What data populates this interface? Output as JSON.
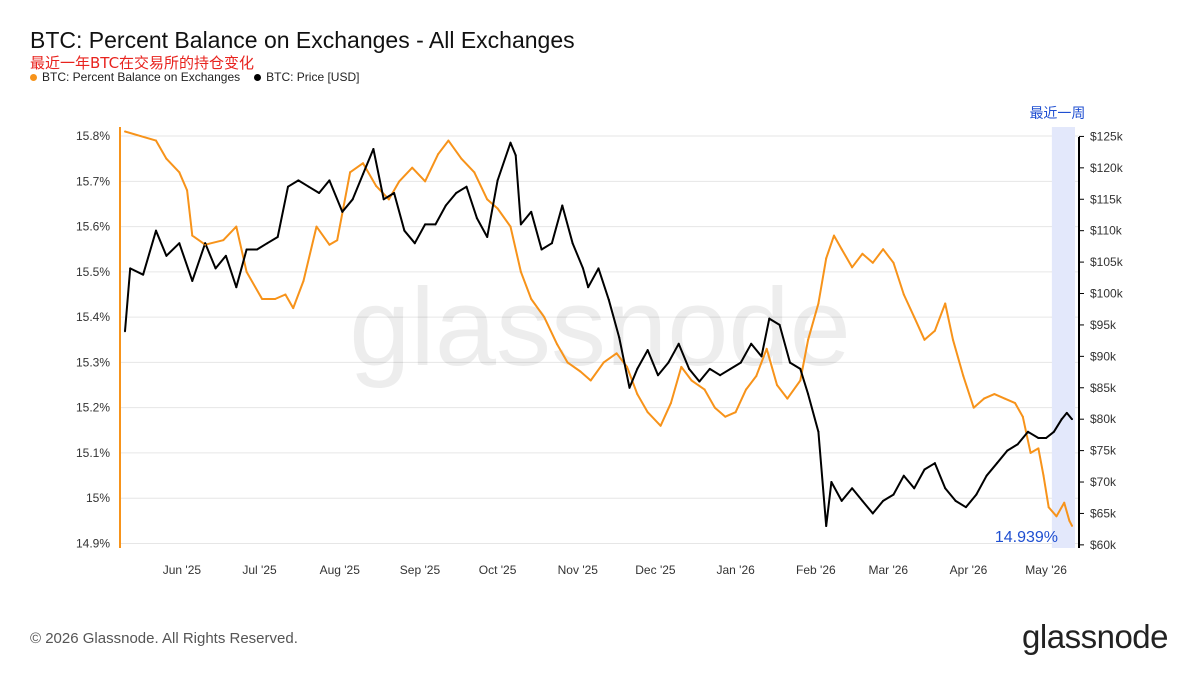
{
  "title": "BTC: Percent Balance on Exchanges - All Exchanges",
  "subtitle": "最近一年BTC在交易所的持仓变化",
  "legend": [
    {
      "label": "BTC: Percent Balance on Exchanges",
      "color": "#f7931a"
    },
    {
      "label": "BTC: Price [USD]",
      "color": "#000000"
    }
  ],
  "annotations": {
    "highlight_label": "最近一周",
    "last_value_label": "14.939%"
  },
  "watermark": "glassnode",
  "footer": {
    "copyright": "© 2026 Glassnode. All Rights Reserved.",
    "brand": "glassnode"
  },
  "colors": {
    "balance": "#f7931a",
    "price": "#000000",
    "highlight": "#e3e8fb",
    "annotation": "#1f4fd1",
    "grid": "#e6e6e6"
  },
  "chart_data": {
    "type": "line",
    "title": "BTC: Percent Balance on Exchanges - All Exchanges",
    "x_ticks": [
      "Jun '25",
      "Jul '25",
      "Aug '25",
      "Sep '25",
      "Oct '25",
      "Nov '25",
      "Dec '25",
      "Jan '26",
      "Feb '26",
      "Mar '26",
      "Apr '26",
      "May '26"
    ],
    "x_range": [
      "2025-05-10",
      "2026-05-11"
    ],
    "y_left": {
      "label": "BTC: Percent Balance on Exchanges",
      "ticks": [
        "14.9%",
        "15%",
        "15.1%",
        "15.2%",
        "15.3%",
        "15.4%",
        "15.5%",
        "15.6%",
        "15.7%",
        "15.8%"
      ],
      "range": [
        14.89,
        15.82
      ]
    },
    "y_right": {
      "label": "BTC: Price [USD]",
      "ticks": [
        "$60k",
        "$65k",
        "$70k",
        "$75k",
        "$80k",
        "$85k",
        "$90k",
        "$95k",
        "$100k",
        "$105k",
        "$110k",
        "$115k",
        "$120k",
        "$125k"
      ],
      "range": [
        59.5,
        126.5
      ]
    },
    "highlight_range": [
      "2026-05-04",
      "2026-05-11"
    ],
    "series": [
      {
        "name": "BTC: Percent Balance on Exchanges",
        "axis": "left",
        "points": [
          [
            "2025-05-10",
            15.81
          ],
          [
            "2025-05-16",
            15.8
          ],
          [
            "2025-05-22",
            15.79
          ],
          [
            "2025-05-26",
            15.75
          ],
          [
            "2025-05-31",
            15.72
          ],
          [
            "2025-06-03",
            15.68
          ],
          [
            "2025-06-05",
            15.58
          ],
          [
            "2025-06-10",
            15.56
          ],
          [
            "2025-06-17",
            15.57
          ],
          [
            "2025-06-22",
            15.6
          ],
          [
            "2025-06-26",
            15.5
          ],
          [
            "2025-07-02",
            15.44
          ],
          [
            "2025-07-07",
            15.44
          ],
          [
            "2025-07-11",
            15.45
          ],
          [
            "2025-07-14",
            15.42
          ],
          [
            "2025-07-18",
            15.48
          ],
          [
            "2025-07-23",
            15.6
          ],
          [
            "2025-07-28",
            15.56
          ],
          [
            "2025-07-31",
            15.57
          ],
          [
            "2025-08-05",
            15.72
          ],
          [
            "2025-08-10",
            15.74
          ],
          [
            "2025-08-15",
            15.69
          ],
          [
            "2025-08-20",
            15.66
          ],
          [
            "2025-08-24",
            15.7
          ],
          [
            "2025-08-29",
            15.73
          ],
          [
            "2025-09-03",
            15.7
          ],
          [
            "2025-09-08",
            15.76
          ],
          [
            "2025-09-12",
            15.79
          ],
          [
            "2025-09-17",
            15.75
          ],
          [
            "2025-09-22",
            15.72
          ],
          [
            "2025-09-27",
            15.66
          ],
          [
            "2025-10-01",
            15.64
          ],
          [
            "2025-10-06",
            15.6
          ],
          [
            "2025-10-10",
            15.5
          ],
          [
            "2025-10-14",
            15.44
          ],
          [
            "2025-10-19",
            15.4
          ],
          [
            "2025-10-24",
            15.34
          ],
          [
            "2025-10-28",
            15.3
          ],
          [
            "2025-11-02",
            15.28
          ],
          [
            "2025-11-06",
            15.26
          ],
          [
            "2025-11-11",
            15.3
          ],
          [
            "2025-11-16",
            15.32
          ],
          [
            "2025-11-20",
            15.29
          ],
          [
            "2025-11-24",
            15.23
          ],
          [
            "2025-11-28",
            15.19
          ],
          [
            "2025-12-03",
            15.16
          ],
          [
            "2025-12-07",
            15.21
          ],
          [
            "2025-12-11",
            15.29
          ],
          [
            "2025-12-15",
            15.26
          ],
          [
            "2025-12-20",
            15.24
          ],
          [
            "2025-12-24",
            15.2
          ],
          [
            "2025-12-28",
            15.18
          ],
          [
            "2026-01-01",
            15.19
          ],
          [
            "2026-01-05",
            15.24
          ],
          [
            "2026-01-09",
            15.27
          ],
          [
            "2026-01-13",
            15.33
          ],
          [
            "2026-01-17",
            15.25
          ],
          [
            "2026-01-21",
            15.22
          ],
          [
            "2026-01-26",
            15.26
          ],
          [
            "2026-01-29",
            15.35
          ],
          [
            "2026-02-02",
            15.43
          ],
          [
            "2026-02-05",
            15.53
          ],
          [
            "2026-02-08",
            15.58
          ],
          [
            "2026-02-11",
            15.55
          ],
          [
            "2026-02-15",
            15.51
          ],
          [
            "2026-02-19",
            15.54
          ],
          [
            "2026-02-23",
            15.52
          ],
          [
            "2026-02-27",
            15.55
          ],
          [
            "2026-03-03",
            15.52
          ],
          [
            "2026-03-07",
            15.45
          ],
          [
            "2026-03-11",
            15.4
          ],
          [
            "2026-03-15",
            15.35
          ],
          [
            "2026-03-19",
            15.37
          ],
          [
            "2026-03-23",
            15.43
          ],
          [
            "2026-03-26",
            15.35
          ],
          [
            "2026-03-30",
            15.27
          ],
          [
            "2026-04-03",
            15.2
          ],
          [
            "2026-04-07",
            15.22
          ],
          [
            "2026-04-11",
            15.23
          ],
          [
            "2026-04-15",
            15.22
          ],
          [
            "2026-04-19",
            15.21
          ],
          [
            "2026-04-22",
            15.18
          ],
          [
            "2026-04-25",
            15.1
          ],
          [
            "2026-04-28",
            15.11
          ],
          [
            "2026-04-30",
            15.05
          ],
          [
            "2026-05-02",
            14.98
          ],
          [
            "2026-05-05",
            14.96
          ],
          [
            "2026-05-08",
            14.99
          ],
          [
            "2026-05-10",
            14.95
          ],
          [
            "2026-05-11",
            14.939
          ]
        ]
      },
      {
        "name": "BTC: Price [USD]",
        "axis": "right",
        "points": [
          [
            "2025-05-10",
            94
          ],
          [
            "2025-05-12",
            104
          ],
          [
            "2025-05-17",
            103
          ],
          [
            "2025-05-22",
            110
          ],
          [
            "2025-05-26",
            106
          ],
          [
            "2025-05-31",
            108
          ],
          [
            "2025-06-05",
            102
          ],
          [
            "2025-06-10",
            108
          ],
          [
            "2025-06-14",
            104
          ],
          [
            "2025-06-18",
            106
          ],
          [
            "2025-06-22",
            101
          ],
          [
            "2025-06-26",
            107
          ],
          [
            "2025-06-30",
            107
          ],
          [
            "2025-07-04",
            108
          ],
          [
            "2025-07-08",
            109
          ],
          [
            "2025-07-12",
            117
          ],
          [
            "2025-07-16",
            118
          ],
          [
            "2025-07-20",
            117
          ],
          [
            "2025-07-24",
            116
          ],
          [
            "2025-07-28",
            118
          ],
          [
            "2025-08-02",
            113
          ],
          [
            "2025-08-06",
            115
          ],
          [
            "2025-08-10",
            119
          ],
          [
            "2025-08-14",
            123
          ],
          [
            "2025-08-18",
            115
          ],
          [
            "2025-08-22",
            116
          ],
          [
            "2025-08-26",
            110
          ],
          [
            "2025-08-30",
            108
          ],
          [
            "2025-09-03",
            111
          ],
          [
            "2025-09-07",
            111
          ],
          [
            "2025-09-11",
            114
          ],
          [
            "2025-09-15",
            116
          ],
          [
            "2025-09-19",
            117
          ],
          [
            "2025-09-23",
            112
          ],
          [
            "2025-09-27",
            109
          ],
          [
            "2025-10-01",
            118
          ],
          [
            "2025-10-06",
            124
          ],
          [
            "2025-10-08",
            122
          ],
          [
            "2025-10-10",
            111
          ],
          [
            "2025-10-14",
            113
          ],
          [
            "2025-10-18",
            107
          ],
          [
            "2025-10-22",
            108
          ],
          [
            "2025-10-26",
            114
          ],
          [
            "2025-10-30",
            108
          ],
          [
            "2025-11-03",
            104
          ],
          [
            "2025-11-05",
            101
          ],
          [
            "2025-11-09",
            104
          ],
          [
            "2025-11-13",
            99
          ],
          [
            "2025-11-17",
            93
          ],
          [
            "2025-11-21",
            85
          ],
          [
            "2025-11-24",
            88
          ],
          [
            "2025-11-28",
            91
          ],
          [
            "2025-12-02",
            87
          ],
          [
            "2025-12-06",
            89
          ],
          [
            "2025-12-10",
            92
          ],
          [
            "2025-12-14",
            88
          ],
          [
            "2025-12-18",
            86
          ],
          [
            "2025-12-22",
            88
          ],
          [
            "2025-12-26",
            87
          ],
          [
            "2025-12-30",
            88
          ],
          [
            "2026-01-03",
            89
          ],
          [
            "2026-01-07",
            92
          ],
          [
            "2026-01-11",
            90
          ],
          [
            "2026-01-14",
            96
          ],
          [
            "2026-01-18",
            95
          ],
          [
            "2026-01-22",
            89
          ],
          [
            "2026-01-26",
            88
          ],
          [
            "2026-01-29",
            84
          ],
          [
            "2026-02-02",
            78
          ],
          [
            "2026-02-05",
            63
          ],
          [
            "2026-02-07",
            70
          ],
          [
            "2026-02-11",
            67
          ],
          [
            "2026-02-15",
            69
          ],
          [
            "2026-02-19",
            67
          ],
          [
            "2026-02-23",
            65
          ],
          [
            "2026-02-27",
            67
          ],
          [
            "2026-03-03",
            68
          ],
          [
            "2026-03-07",
            71
          ],
          [
            "2026-03-11",
            69
          ],
          [
            "2026-03-15",
            72
          ],
          [
            "2026-03-19",
            73
          ],
          [
            "2026-03-23",
            69
          ],
          [
            "2026-03-27",
            67
          ],
          [
            "2026-03-31",
            66
          ],
          [
            "2026-04-04",
            68
          ],
          [
            "2026-04-08",
            71
          ],
          [
            "2026-04-12",
            73
          ],
          [
            "2026-04-16",
            75
          ],
          [
            "2026-04-20",
            76
          ],
          [
            "2026-04-24",
            78
          ],
          [
            "2026-04-28",
            77
          ],
          [
            "2026-05-01",
            77
          ],
          [
            "2026-05-04",
            78
          ],
          [
            "2026-05-07",
            80
          ],
          [
            "2026-05-09",
            81
          ],
          [
            "2026-05-11",
            80
          ]
        ]
      }
    ]
  }
}
